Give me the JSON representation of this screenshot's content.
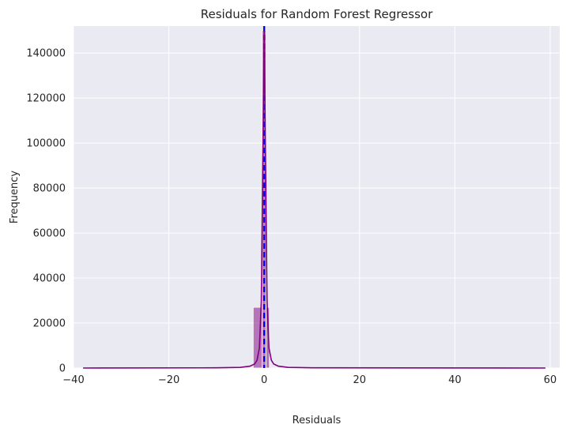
{
  "chart_data": {
    "type": "bar",
    "title": "Residuals for Random Forest Regressor",
    "xlabel": "Residuals",
    "ylabel": "Frequency",
    "xlim": [
      -40,
      62
    ],
    "ylim": [
      0,
      152000
    ],
    "xticks": [
      -40,
      -20,
      0,
      20,
      40,
      60
    ],
    "xtick_labels": [
      "−40",
      "−20",
      "0",
      "20",
      "40",
      "60"
    ],
    "yticks": [
      0,
      20000,
      40000,
      60000,
      80000,
      100000,
      120000,
      140000
    ],
    "ytick_labels": [
      "0",
      "20000",
      "40000",
      "60000",
      "80000",
      "100000",
      "120000",
      "140000"
    ],
    "grid": true,
    "histogram": {
      "bins": [
        {
          "x0": -2.3,
          "x1": -0.4,
          "count": 27000
        },
        {
          "x0": -0.4,
          "x1": 0.4,
          "count": 150000
        },
        {
          "x0": 0.4,
          "x1": 1.1,
          "count": 27000
        }
      ],
      "color": "#800080"
    },
    "kde": {
      "x": [
        -38,
        -10,
        -5,
        -3,
        -2,
        -1.5,
        -1,
        -0.6,
        -0.3,
        0,
        0.3,
        0.6,
        1,
        1.5,
        2,
        3,
        5,
        10,
        59
      ],
      "y": [
        0,
        100,
        300,
        800,
        1800,
        3500,
        9000,
        30000,
        90000,
        150000,
        90000,
        30000,
        9000,
        3500,
        1800,
        800,
        300,
        100,
        0
      ],
      "color": "#800080"
    },
    "reference_lines": [
      {
        "x": 0,
        "color": "#ff0000",
        "style": "dashed"
      },
      {
        "x": 0,
        "color": "#0000ff",
        "style": "dashed"
      }
    ]
  }
}
